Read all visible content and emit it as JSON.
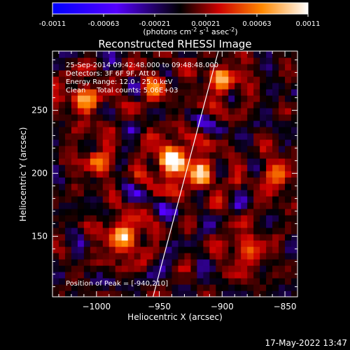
{
  "chart_data": {
    "type": "heatmap",
    "title": "Reconstructed RHESSI Image",
    "xlabel": "Heliocentric X (arcsec)",
    "ylabel": "Heliocentric Y (arcsec)",
    "xlim": [
      -1035,
      -840
    ],
    "ylim": [
      102,
      297
    ],
    "xticks": [
      -1000,
      -950,
      -900,
      -850
    ],
    "yticks": [
      150,
      200,
      250
    ],
    "colorbar": {
      "min": -0.0011,
      "max": 0.0011,
      "ticks": [
        "-0.0011",
        "-0.00063",
        "-0.00021",
        "0.00021",
        "0.00063",
        "0.0011"
      ],
      "label_main": "(photons cm",
      "label_sup1": "-2",
      "label_mid1": " s",
      "label_sup2": "-1",
      "label_mid2": " asec",
      "label_sup3": "-2",
      "label_end": ")",
      "colormap": [
        "#0000ff",
        "#5500ff",
        "#000000",
        "#cc0000",
        "#ff8800",
        "#ffffff"
      ]
    },
    "annotations": [
      "25-Sep-2014 09:42:48.000 to 09:48:48.000",
      "Detectors: 3F 6F 9F, Att 0",
      "Energy Range: 12.0 - 25.0 keV",
      "Clean     Total counts: 5.06E+03"
    ],
    "peak_label": "Position of Peak = [-940,210]",
    "peak": [
      -940,
      210
    ],
    "bright_sources": [
      {
        "x": -940,
        "y": 210,
        "amp": 1.0
      },
      {
        "x": -978,
        "y": 150,
        "amp": 0.75
      },
      {
        "x": -1010,
        "y": 260,
        "amp": 0.6
      },
      {
        "x": -900,
        "y": 275,
        "amp": 0.6
      },
      {
        "x": -915,
        "y": 200,
        "amp": 0.55
      },
      {
        "x": -855,
        "y": 200,
        "amp": 0.5
      },
      {
        "x": -880,
        "y": 140,
        "amp": 0.5
      },
      {
        "x": -1000,
        "y": 210,
        "amp": 0.45
      },
      {
        "x": -955,
        "y": 270,
        "amp": 0.4
      }
    ],
    "limb_line": [
      [
        -955,
        102
      ],
      [
        -903,
        297
      ]
    ]
  },
  "footer": {
    "timestamp": "17-May-2022 13:47"
  }
}
